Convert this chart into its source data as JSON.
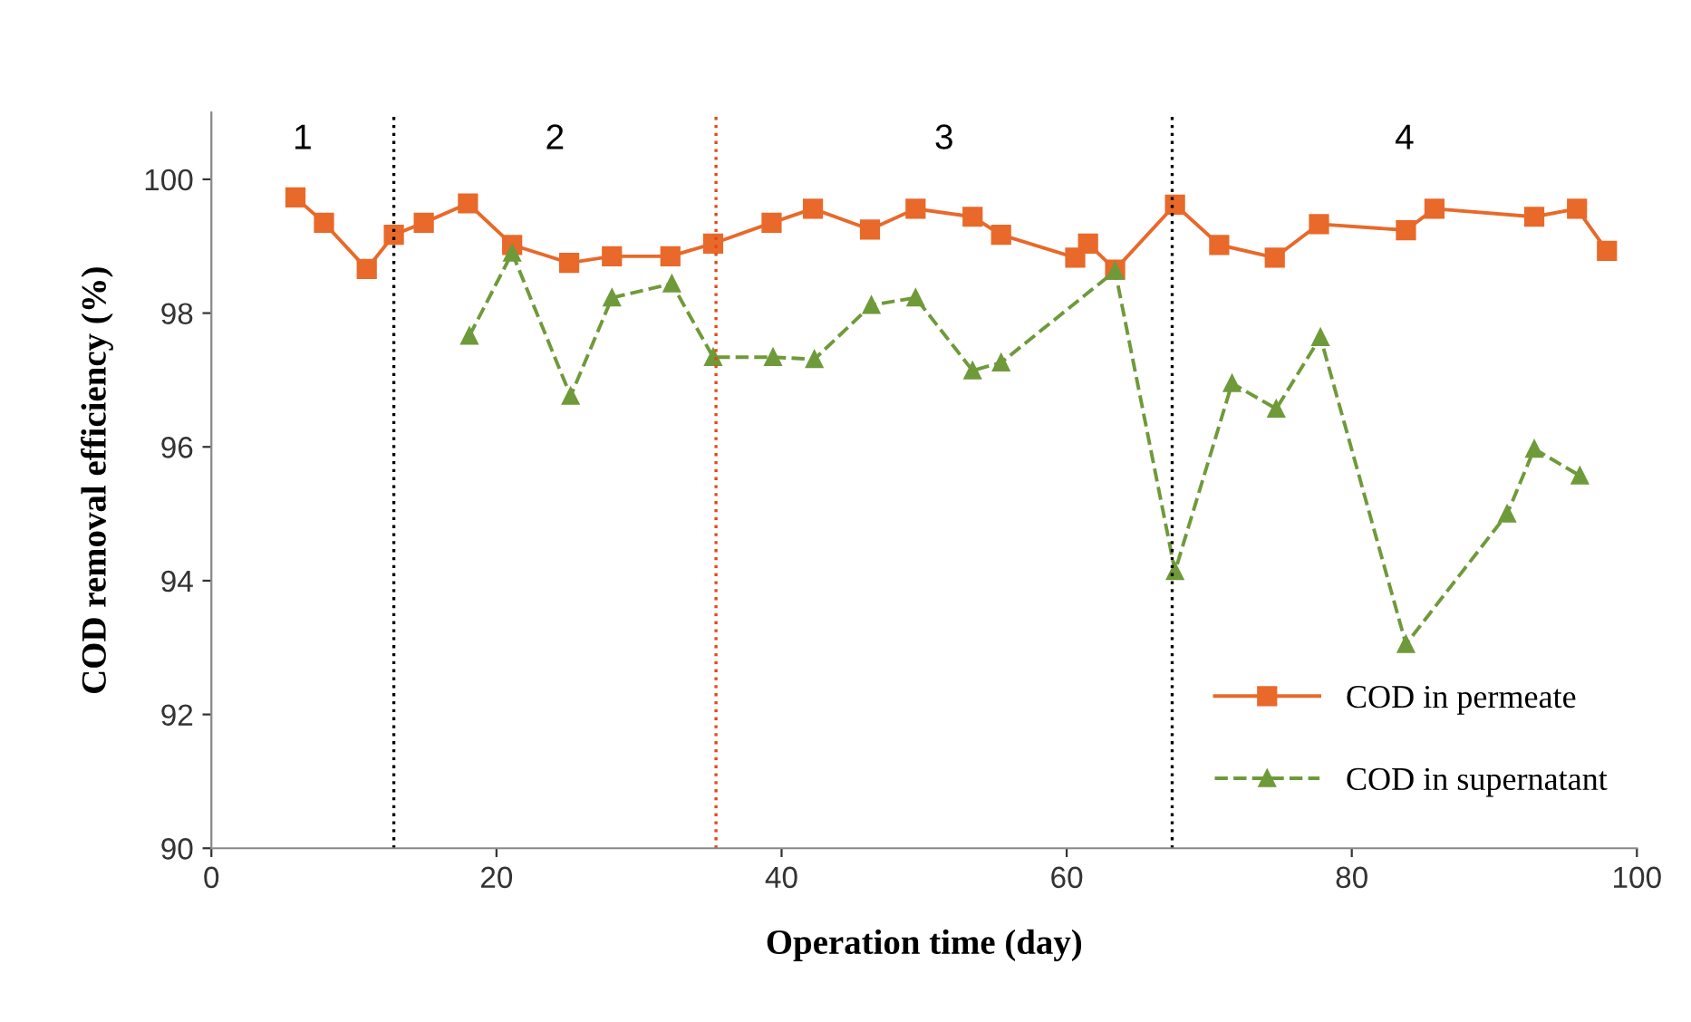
{
  "chart_data": {
    "type": "line",
    "xlabel": "Operation time (day)",
    "ylabel": "COD removal efficiency (%)",
    "xlim": [
      0,
      100
    ],
    "xticks": [
      0,
      20,
      40,
      60,
      80,
      100
    ],
    "ylim": [
      90,
      101
    ],
    "yticks": [
      90,
      92,
      94,
      96,
      98,
      100
    ],
    "grid": false,
    "legend": "bottom right",
    "series": [
      {
        "name": "COD in permeate",
        "color": "#e8692a",
        "marker": "square",
        "line_style": "solid",
        "x": [
          5.9,
          7.9,
          10.9,
          12.8,
          14.9,
          18.0,
          21.1,
          25.1,
          28.1,
          32.2,
          35.2,
          39.3,
          42.2,
          46.2,
          49.4,
          53.4,
          55.4,
          60.6,
          61.5,
          63.4,
          67.6,
          70.7,
          74.6,
          77.7,
          83.8,
          85.8,
          92.8,
          95.8,
          97.9
        ],
        "values": [
          99.73,
          99.35,
          98.66,
          99.17,
          99.35,
          99.64,
          99.02,
          98.75,
          98.85,
          98.85,
          99.04,
          99.35,
          99.56,
          99.25,
          99.56,
          99.44,
          99.17,
          98.83,
          99.04,
          98.65,
          99.62,
          99.02,
          98.83,
          99.33,
          99.24,
          99.56,
          99.44,
          99.56,
          98.93
        ]
      },
      {
        "name": "COD in supernatant",
        "color": "#6f9a3a",
        "marker": "triangle",
        "line_style": "dashed",
        "x": [
          18.1,
          21.1,
          25.2,
          28.1,
          32.3,
          35.2,
          39.4,
          42.3,
          46.3,
          49.4,
          53.4,
          55.4,
          63.4,
          67.6,
          71.6,
          74.7,
          77.8,
          83.8,
          90.9,
          92.8,
          96.0
        ],
        "values": [
          97.66,
          98.9,
          96.76,
          98.23,
          98.44,
          97.34,
          97.34,
          97.31,
          98.12,
          98.23,
          97.14,
          97.26,
          98.63,
          94.14,
          96.95,
          96.57,
          97.64,
          93.05,
          95.0,
          95.97,
          95.57
        ]
      }
    ],
    "ref_lines": [
      {
        "axis": "x",
        "value": 12.8,
        "color": "#000000",
        "line_style": "dotted"
      },
      {
        "axis": "x",
        "value": 35.4,
        "color": "#e04a1a",
        "line_style": "dotted"
      },
      {
        "axis": "x",
        "value": 67.4,
        "color": "#000000",
        "line_style": "dotted"
      }
    ],
    "annotations": [
      "1",
      "2",
      "3",
      "4"
    ]
  }
}
